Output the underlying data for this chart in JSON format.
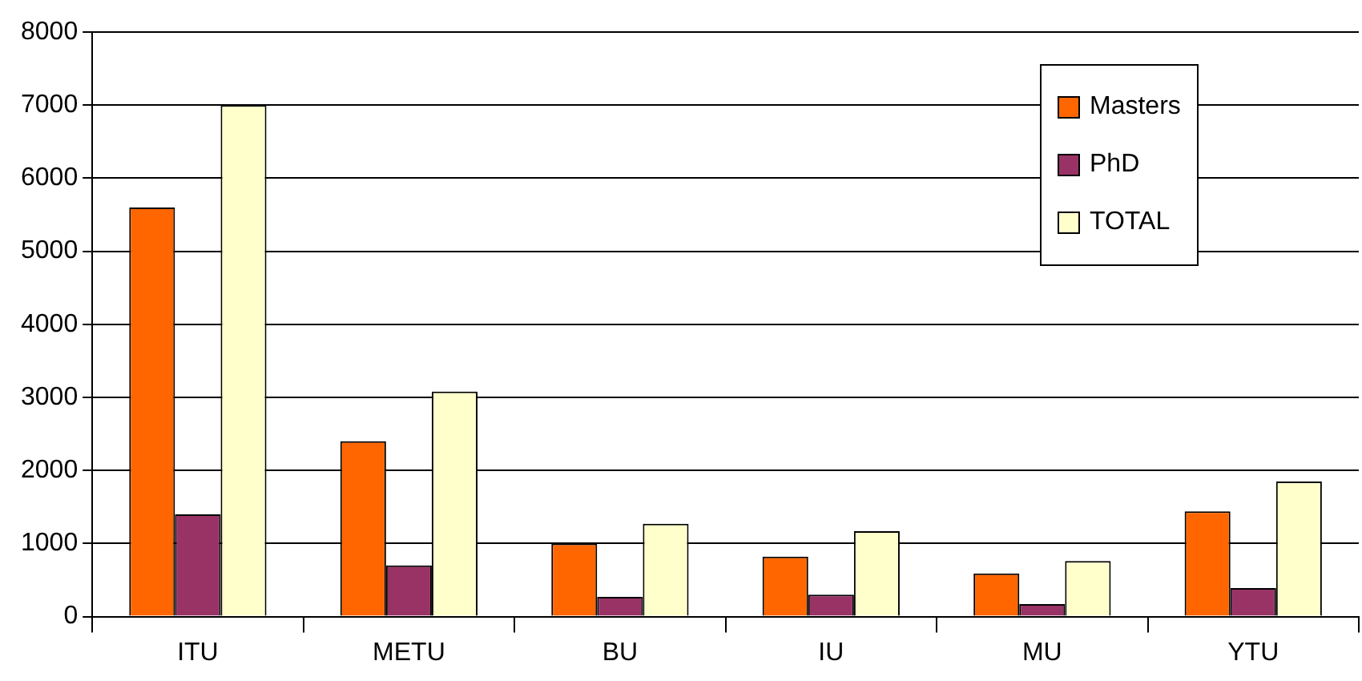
{
  "chart_data": {
    "type": "bar",
    "categories": [
      "ITU",
      "METU",
      "BU",
      "IU",
      "MU",
      "YTU"
    ],
    "series": [
      {
        "name": "Masters",
        "color": "#ff6600",
        "values": [
          5600,
          2400,
          1000,
          820,
          590,
          1440
        ]
      },
      {
        "name": "PhD",
        "color": "#993366",
        "values": [
          1400,
          700,
          270,
          300,
          170,
          390
        ]
      },
      {
        "name": "TOTAL",
        "color": "#ffffcc",
        "values": [
          7000,
          3080,
          1270,
          1170,
          760,
          1850
        ]
      }
    ],
    "ylim": [
      0,
      8000
    ],
    "yticks": [
      0,
      1000,
      2000,
      3000,
      4000,
      5000,
      6000,
      7000,
      8000
    ],
    "grid": "y",
    "legend": "top right"
  }
}
